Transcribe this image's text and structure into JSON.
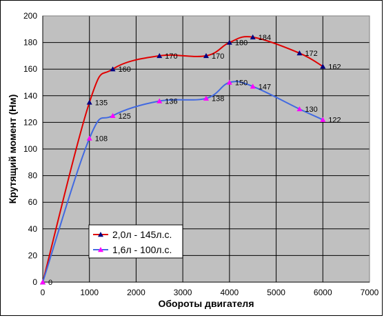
{
  "chart_data": {
    "type": "line",
    "xlabel": "Обороты двигателя",
    "ylabel": "Крутящий момент (Нм)",
    "xlim": [
      0,
      7000
    ],
    "ylim": [
      0,
      200
    ],
    "xticks": [
      0,
      1000,
      2000,
      3000,
      4000,
      5000,
      6000,
      7000
    ],
    "yticks": [
      0,
      20,
      40,
      60,
      80,
      100,
      120,
      140,
      160,
      180,
      200
    ],
    "grid": true,
    "legend_position": "bottom-left",
    "background_color": "#c0c0c0",
    "series": [
      {
        "name": "2,0л - 145л.с.",
        "color": "#e00000",
        "marker_color": "#000080",
        "marker": "triangle",
        "points": [
          {
            "x": 0,
            "y": 0,
            "label": "0"
          },
          {
            "x": 1000,
            "y": 135,
            "label": "135"
          },
          {
            "x": 1500,
            "y": 160,
            "label": "160"
          },
          {
            "x": 2500,
            "y": 170,
            "label": "170"
          },
          {
            "x": 3500,
            "y": 170,
            "label": "170"
          },
          {
            "x": 4000,
            "y": 180,
            "label": "180"
          },
          {
            "x": 4500,
            "y": 184,
            "label": "184"
          },
          {
            "x": 5500,
            "y": 172,
            "label": "172"
          },
          {
            "x": 6000,
            "y": 162,
            "label": "162"
          }
        ]
      },
      {
        "name": "1,6л - 100л.с.",
        "color": "#4169e1",
        "marker_color": "#ff00ff",
        "marker": "triangle",
        "points": [
          {
            "x": 0,
            "y": 0,
            "label": ""
          },
          {
            "x": 1000,
            "y": 108,
            "label": "108"
          },
          {
            "x": 1500,
            "y": 125,
            "label": "125"
          },
          {
            "x": 2500,
            "y": 136,
            "label": "136"
          },
          {
            "x": 3500,
            "y": 138,
            "label": "138"
          },
          {
            "x": 4000,
            "y": 150,
            "label": "150"
          },
          {
            "x": 4500,
            "y": 147,
            "label": "147"
          },
          {
            "x": 5500,
            "y": 130,
            "label": "130"
          },
          {
            "x": 6000,
            "y": 122,
            "label": "122"
          }
        ]
      }
    ]
  }
}
